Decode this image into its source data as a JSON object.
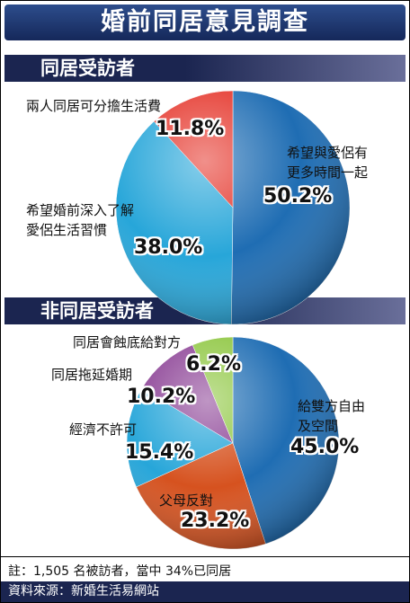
{
  "title": "婚前同居意見調查",
  "chart_data": [
    {
      "type": "pie",
      "title": "同居受訪者",
      "categories": [
        "希望與愛侶有\n更多時間一起",
        "希望婚前深入了解\n愛侶生活習慣",
        "兩人同居可分擔生活費"
      ],
      "values": [
        50.2,
        38.0,
        11.8
      ],
      "value_labels": [
        "50.2%",
        "38.0%",
        "11.8%"
      ],
      "colors": [
        "#1f6db3",
        "#27a6d9",
        "#e5352b"
      ]
    },
    {
      "type": "pie",
      "title": "非同居受訪者",
      "categories": [
        "給雙方自由\n及空間",
        "父母反對",
        "經濟不許可",
        "同居拖延婚期",
        "同居會蝕底給對方"
      ],
      "values": [
        45.0,
        23.2,
        15.4,
        10.2,
        6.2
      ],
      "value_labels": [
        "45.0%",
        "23.2%",
        "15.4%",
        "10.2%",
        "6.2%"
      ],
      "colors": [
        "#1f6db3",
        "#d6521f",
        "#27a6d9",
        "#8a3f94",
        "#8dc63f"
      ]
    }
  ],
  "note": "註：1,505 名被訪者，當中 34%已同居",
  "source": "資料來源：新婚生活易網站"
}
